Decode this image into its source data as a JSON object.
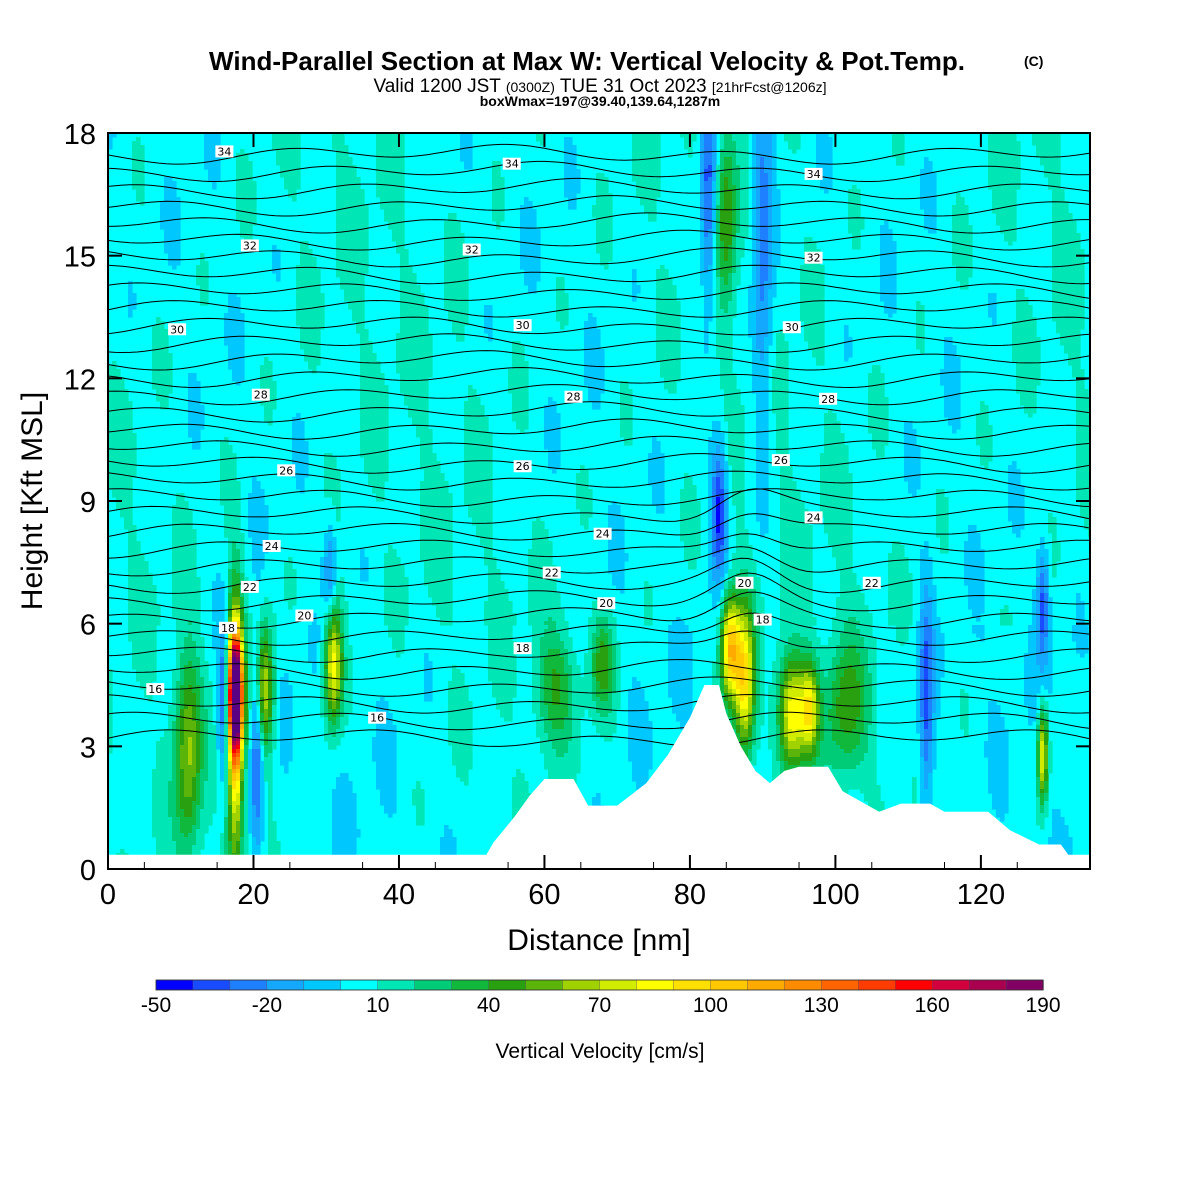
{
  "chart_data": {
    "type": "heatmap",
    "title": "Wind-Parallel Section at Max W: Vertical Velocity & Pot.Temp.",
    "title_badge": "(C)",
    "subtitle": {
      "prefix": "Valid 1200 JST",
      "utc": "(0300Z)",
      "date": "TUE 31 Oct 2023",
      "forecast": "[21hrFcst@1206z]"
    },
    "subtitle2": "boxWmax=197@39.40,139.64,1287m",
    "xlabel": "Distance [nm]",
    "ylabel": "Height [Kft MSL]",
    "xlim": [
      0,
      135
    ],
    "ylim": [
      0,
      18
    ],
    "xticks": [
      "0",
      "20",
      "40",
      "60",
      "80",
      "100",
      "120"
    ],
    "yticks": [
      "0",
      "3",
      "6",
      "9",
      "12",
      "15",
      "18"
    ],
    "x_tick_values": [
      0,
      20,
      40,
      60,
      80,
      100,
      120
    ],
    "y_tick_values": [
      0,
      3,
      6,
      9,
      12,
      15,
      18
    ],
    "colorbar": {
      "label": "Vertical Velocity [cm/s]",
      "tick_labels": [
        "-50",
        "-20",
        "10",
        "40",
        "70",
        "100",
        "130",
        "160",
        "190"
      ],
      "levels": [
        -50,
        -40,
        -30,
        -20,
        -10,
        0,
        10,
        20,
        30,
        40,
        50,
        60,
        70,
        80,
        90,
        100,
        110,
        120,
        130,
        140,
        150,
        160,
        170,
        180,
        190
      ],
      "colors": [
        "#0000ff",
        "#1a4cff",
        "#1e80ff",
        "#14a8ff",
        "#00c8ff",
        "#00ffff",
        "#00e6b4",
        "#00cc78",
        "#10b83c",
        "#28a010",
        "#5ab40a",
        "#a0d200",
        "#d2ec00",
        "#ffff00",
        "#ffe000",
        "#ffc800",
        "#ffaa00",
        "#ff8c00",
        "#ff6400",
        "#ff3c00",
        "#ff0000",
        "#d2003c",
        "#aa0050",
        "#820064",
        "#5a0082"
      ]
    },
    "theta_contour_labels": [
      {
        "text": "34",
        "x": 16,
        "y": 17.55
      },
      {
        "text": "34",
        "x": 55.5,
        "y": 17.25
      },
      {
        "text": "34",
        "x": 97,
        "y": 17.0
      },
      {
        "text": "32",
        "x": 19.5,
        "y": 15.25
      },
      {
        "text": "32",
        "x": 50,
        "y": 15.15
      },
      {
        "text": "32",
        "x": 97,
        "y": 14.95
      },
      {
        "text": "30",
        "x": 9.5,
        "y": 13.2
      },
      {
        "text": "30",
        "x": 57,
        "y": 13.3
      },
      {
        "text": "30",
        "x": 94,
        "y": 13.25
      },
      {
        "text": "28",
        "x": 21,
        "y": 11.6
      },
      {
        "text": "28",
        "x": 64,
        "y": 11.55
      },
      {
        "text": "28",
        "x": 99,
        "y": 11.5
      },
      {
        "text": "26",
        "x": 24.5,
        "y": 9.75
      },
      {
        "text": "26",
        "x": 57,
        "y": 9.85
      },
      {
        "text": "26",
        "x": 92.5,
        "y": 10.0
      },
      {
        "text": "24",
        "x": 22.5,
        "y": 7.9
      },
      {
        "text": "24",
        "x": 68,
        "y": 8.2
      },
      {
        "text": "24",
        "x": 97,
        "y": 8.6
      },
      {
        "text": "22",
        "x": 19.5,
        "y": 6.9
      },
      {
        "text": "22",
        "x": 61,
        "y": 7.25
      },
      {
        "text": "22",
        "x": 105,
        "y": 7.0
      },
      {
        "text": "20",
        "x": 27,
        "y": 6.2
      },
      {
        "text": "20",
        "x": 68.5,
        "y": 6.5
      },
      {
        "text": "20",
        "x": 87.5,
        "y": 7.0
      },
      {
        "text": "18",
        "x": 16.5,
        "y": 5.9
      },
      {
        "text": "18",
        "x": 57,
        "y": 5.4
      },
      {
        "text": "18",
        "x": 90,
        "y": 6.1
      },
      {
        "text": "16",
        "x": 6.5,
        "y": 4.4
      },
      {
        "text": "16",
        "x": 37,
        "y": 3.7
      }
    ],
    "w_features": [
      {
        "x": 17.5,
        "y": 4.3,
        "sx": 0.7,
        "sy": 1.0,
        "value": 190
      },
      {
        "x": 17.5,
        "y": 3.3,
        "sx": 0.8,
        "sy": 2.4,
        "value": 95
      },
      {
        "x": 16.0,
        "y": 4.1,
        "sx": 0.6,
        "sy": 1.3,
        "value": -50
      },
      {
        "x": 20.5,
        "y": 3.0,
        "sx": 0.6,
        "sy": 1.8,
        "value": -45
      },
      {
        "x": 21.5,
        "y": 4.4,
        "sx": 0.9,
        "sy": 1.1,
        "value": 70
      },
      {
        "x": 11.0,
        "y": 2.9,
        "sx": 1.3,
        "sy": 1.7,
        "value": 55
      },
      {
        "x": 31.0,
        "y": 5.0,
        "sx": 0.9,
        "sy": 1.0,
        "value": 85
      },
      {
        "x": 30.5,
        "y": 7.3,
        "sx": 0.6,
        "sy": 0.8,
        "value": -30
      },
      {
        "x": 85.5,
        "y": 5.4,
        "sx": 0.9,
        "sy": 0.9,
        "value": 100
      },
      {
        "x": 87.5,
        "y": 4.6,
        "sx": 1.0,
        "sy": 1.3,
        "value": 90
      },
      {
        "x": 94.0,
        "y": 3.8,
        "sx": 1.3,
        "sy": 1.0,
        "value": 85
      },
      {
        "x": 96.5,
        "y": 3.9,
        "sx": 0.9,
        "sy": 0.8,
        "value": 70
      },
      {
        "x": 101.5,
        "y": 4.0,
        "sx": 2.0,
        "sy": 1.2,
        "value": 40
      },
      {
        "x": 84.0,
        "y": 8.8,
        "sx": 0.8,
        "sy": 1.2,
        "value": -50
      },
      {
        "x": 82.5,
        "y": 16.5,
        "sx": 0.8,
        "sy": 2.0,
        "value": -45
      },
      {
        "x": 90.0,
        "y": 15.5,
        "sx": 1.0,
        "sy": 3.5,
        "value": -35
      },
      {
        "x": 128.5,
        "y": 6.5,
        "sx": 0.6,
        "sy": 1.0,
        "value": -40
      },
      {
        "x": 128.5,
        "y": 2.8,
        "sx": 0.5,
        "sy": 0.8,
        "value": 80
      },
      {
        "x": 68.0,
        "y": 5.0,
        "sx": 1.2,
        "sy": 0.8,
        "value": 40
      },
      {
        "x": 61.5,
        "y": 4.5,
        "sx": 2.0,
        "sy": 1.0,
        "value": 35
      },
      {
        "x": 85.0,
        "y": 16.0,
        "sx": 1.0,
        "sy": 1.5,
        "value": 40
      },
      {
        "x": 112.5,
        "y": 4.0,
        "sx": 0.7,
        "sy": 2.0,
        "value": -40
      }
    ]
  }
}
